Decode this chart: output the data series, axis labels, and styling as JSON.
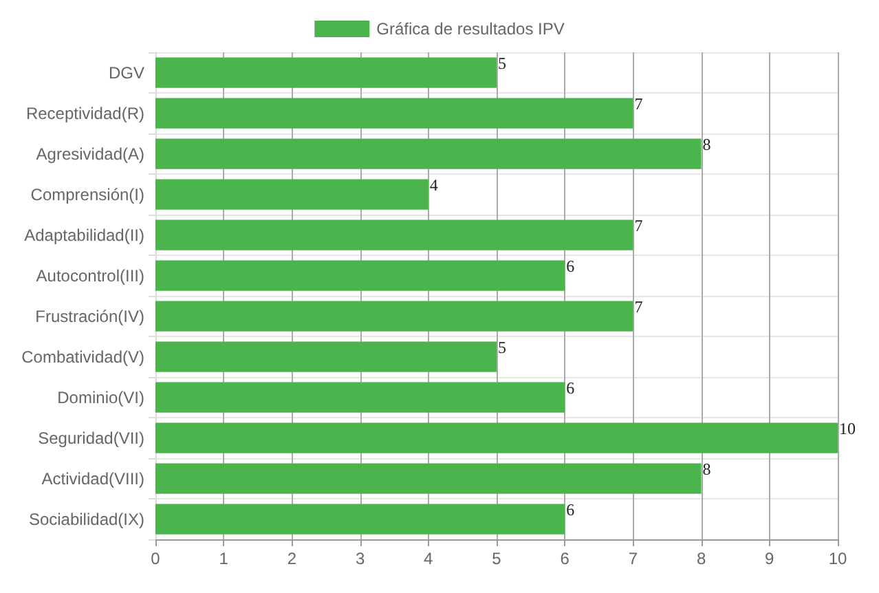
{
  "chart_data": {
    "type": "bar",
    "orientation": "horizontal",
    "categories": [
      "DGV",
      "Receptividad(R)",
      "Agresividad(A)",
      "Comprensión(I)",
      "Adaptabilidad(II)",
      "Autocontrol(III)",
      "Frustración(IV)",
      "Combatividad(V)",
      "Dominio(VI)",
      "Seguridad(VII)",
      "Actividad(VIII)",
      "Sociabilidad(IX)"
    ],
    "series": [
      {
        "name": "Gráfica de resultados IPV",
        "color": "#4cb44c",
        "values": [
          5,
          7,
          8,
          4,
          7,
          6,
          7,
          5,
          6,
          10,
          8,
          6
        ]
      }
    ],
    "xlim": [
      0,
      10
    ],
    "xticks": [
      0,
      1,
      2,
      3,
      4,
      5,
      6,
      7,
      8,
      9,
      10
    ],
    "grid": true,
    "legend": "top",
    "data_labels": true
  }
}
